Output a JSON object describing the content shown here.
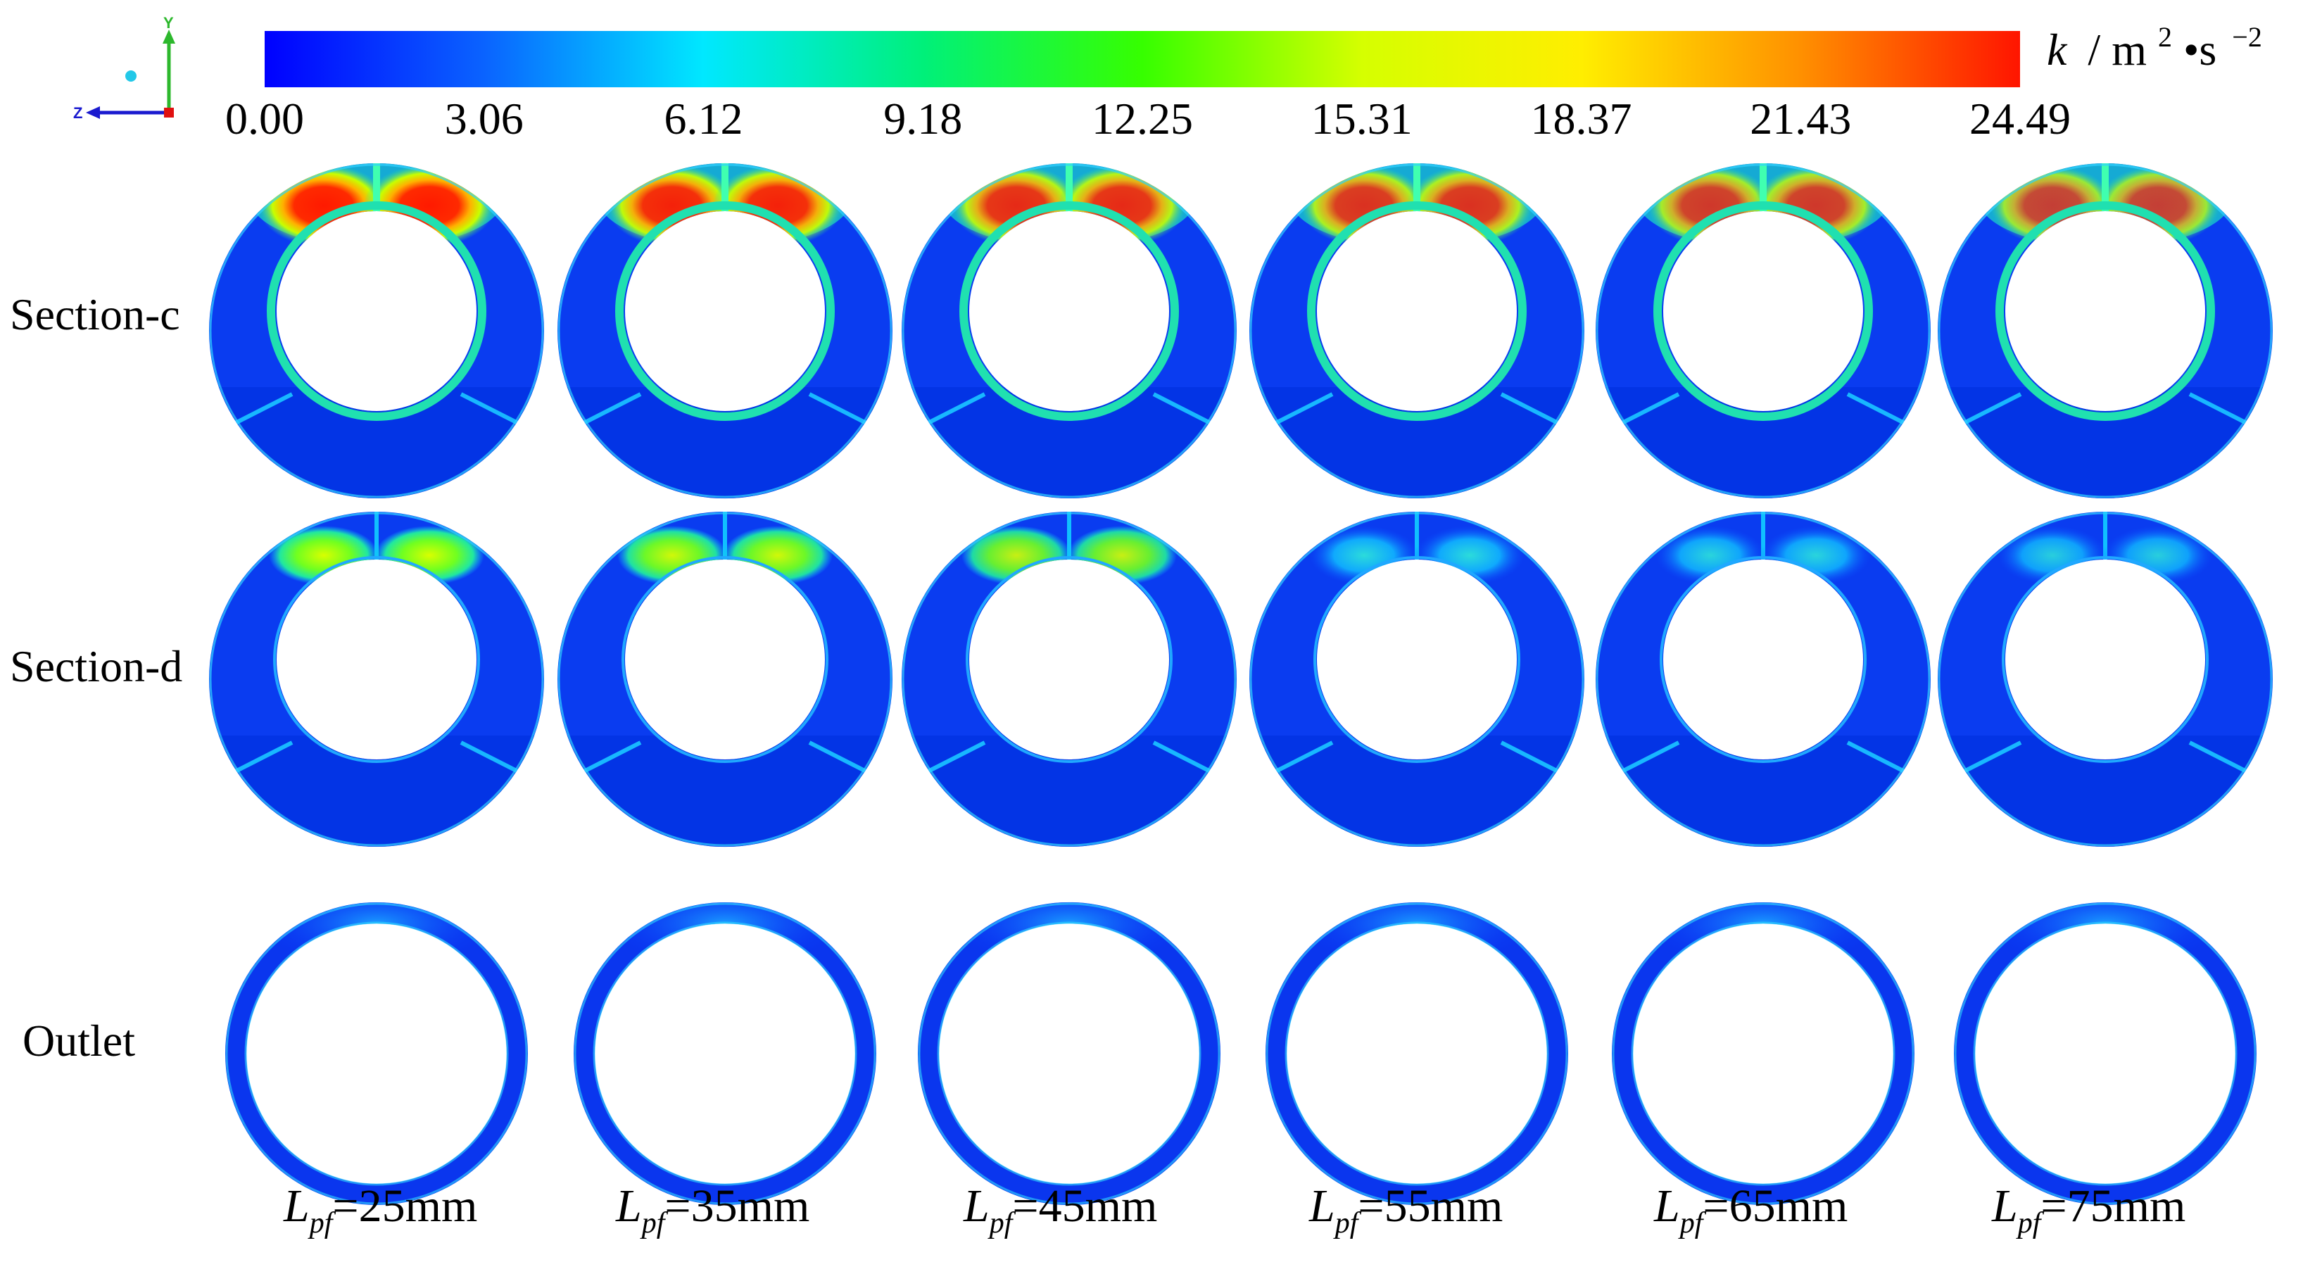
{
  "colorbar": {
    "unit_symbol": "k",
    "unit_rest": "/ m",
    "unit_exp1": "2",
    "unit_mid": "•s",
    "unit_exp2": "−2",
    "ticks": [
      "0.00",
      "3.06",
      "6.12",
      "9.18",
      "12.25",
      "15.31",
      "18.37",
      "21.43",
      "24.49"
    ],
    "min": 0.0,
    "max": 24.49,
    "colors": [
      "#0000ff",
      "#0a63ff",
      "#00e8ff",
      "#00f07a",
      "#36ff00",
      "#d5ff00",
      "#ffee00",
      "#ff9000",
      "#ff1500"
    ]
  },
  "axes_triad": {
    "y_label": "Y",
    "z_label": "Z",
    "y_color": "#2db82d",
    "z_color": "#1a1acf",
    "x_color": "#e01010"
  },
  "rows": [
    {
      "label": "Section-c",
      "kind": "c"
    },
    {
      "label": "Section-d",
      "kind": "d"
    },
    {
      "label": "Outlet",
      "kind": "outlet"
    }
  ],
  "columns": [
    {
      "label_var": "L",
      "label_sub": "pf",
      "label_value": "=25mm",
      "top_intensity": 1.0
    },
    {
      "label_var": "L",
      "label_sub": "pf",
      "label_value": "=35mm",
      "top_intensity": 0.92
    },
    {
      "label_var": "L",
      "label_sub": "pf",
      "label_value": "=45mm",
      "top_intensity": 0.82
    },
    {
      "label_var": "L",
      "label_sub": "pf",
      "label_value": "=55mm",
      "top_intensity": 0.74
    },
    {
      "label_var": "L",
      "label_sub": "pf",
      "label_value": "=65mm",
      "top_intensity": 0.66
    },
    {
      "label_var": "L",
      "label_sub": "pf",
      "label_value": "=75mm",
      "top_intensity": 0.58
    }
  ]
}
